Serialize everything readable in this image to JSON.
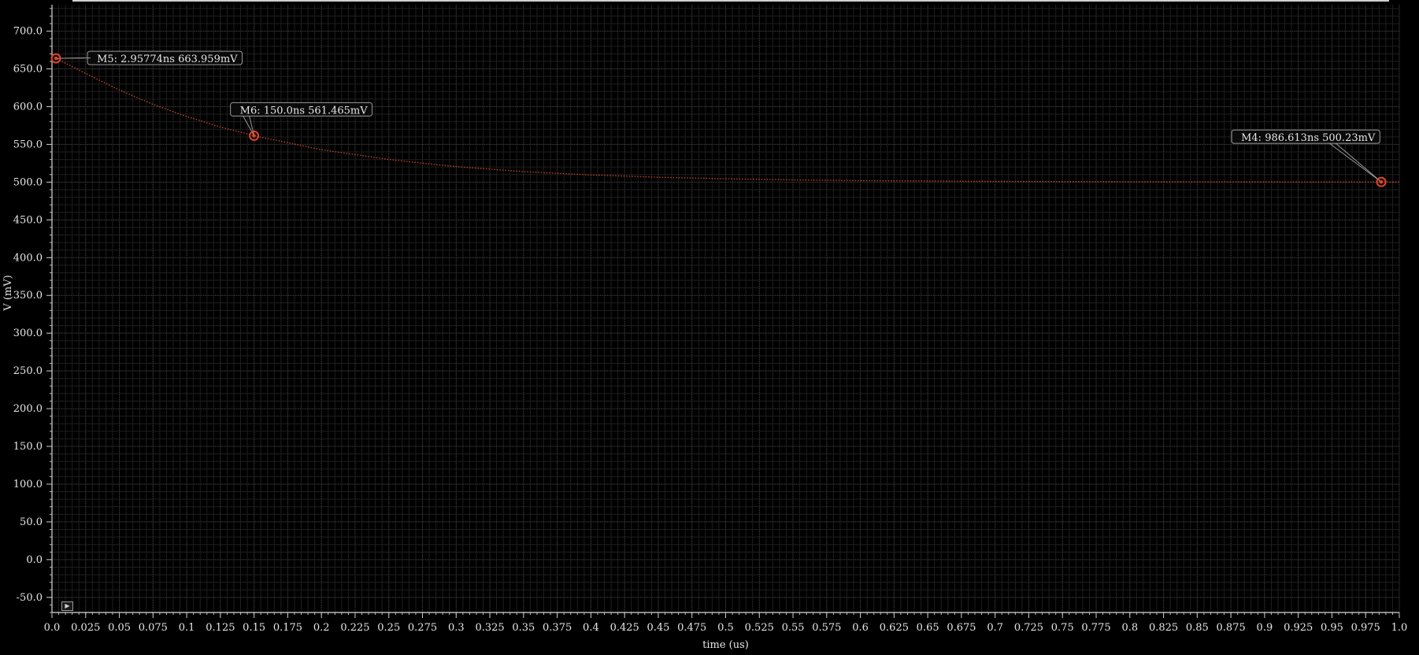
{
  "chart_data": {
    "type": "line",
    "xlabel": "time (us)",
    "ylabel": "V (mV)",
    "xlim": [
      0.0,
      1.0
    ],
    "ylim": [
      -70.0,
      735.0
    ],
    "x_ticks": [
      "0.0",
      "0.025",
      "0.05",
      "0.075",
      "0.1",
      "0.125",
      "0.15",
      "0.175",
      "0.2",
      "0.225",
      "0.25",
      "0.275",
      "0.3",
      "0.325",
      "0.35",
      "0.375",
      "0.4",
      "0.425",
      "0.45",
      "0.475",
      "0.5",
      "0.525",
      "0.55",
      "0.575",
      "0.6",
      "0.625",
      "0.65",
      "0.675",
      "0.7",
      "0.725",
      "0.75",
      "0.775",
      "0.8",
      "0.825",
      "0.85",
      "0.875",
      "0.9",
      "0.925",
      "0.95",
      "0.975",
      "1.0"
    ],
    "y_ticks": [
      "-50.0",
      "0.0",
      "50.0",
      "100.0",
      "150.0",
      "200.0",
      "250.0",
      "300.0",
      "350.0",
      "400.0",
      "450.0",
      "500.0",
      "550.0",
      "600.0",
      "650.0",
      "700.0"
    ],
    "grid": true,
    "background": "#000000",
    "grid_color": "#3a3a3a",
    "series": [
      {
        "color": "#c8452a",
        "style": "dotted",
        "x": [
          0.0,
          0.00296,
          0.025,
          0.05,
          0.075,
          0.1,
          0.125,
          0.15,
          0.2,
          0.25,
          0.3,
          0.35,
          0.4,
          0.45,
          0.5,
          0.55,
          0.6,
          0.7,
          0.8,
          0.9,
          0.9866,
          1.0
        ],
        "y": [
          666.0,
          663.96,
          644.0,
          622.0,
          603.0,
          587.0,
          573.0,
          561.5,
          543.0,
          530.0,
          520.5,
          514.0,
          509.5,
          506.5,
          504.5,
          503.0,
          502.0,
          501.0,
          500.5,
          500.3,
          500.23,
          500.2
        ]
      }
    ],
    "markers": [
      {
        "label": "M5: 2.95774ns 663.959mV",
        "x": 0.00296,
        "y": 663.959,
        "color": "#e0452a"
      },
      {
        "label": "M6: 150.0ns 561.465mV",
        "x": 0.15,
        "y": 561.465,
        "color": "#e0452a"
      },
      {
        "label": "M4: 986.613ns 500.23mV",
        "x": 0.986613,
        "y": 500.23,
        "color": "#e0452a"
      }
    ]
  }
}
